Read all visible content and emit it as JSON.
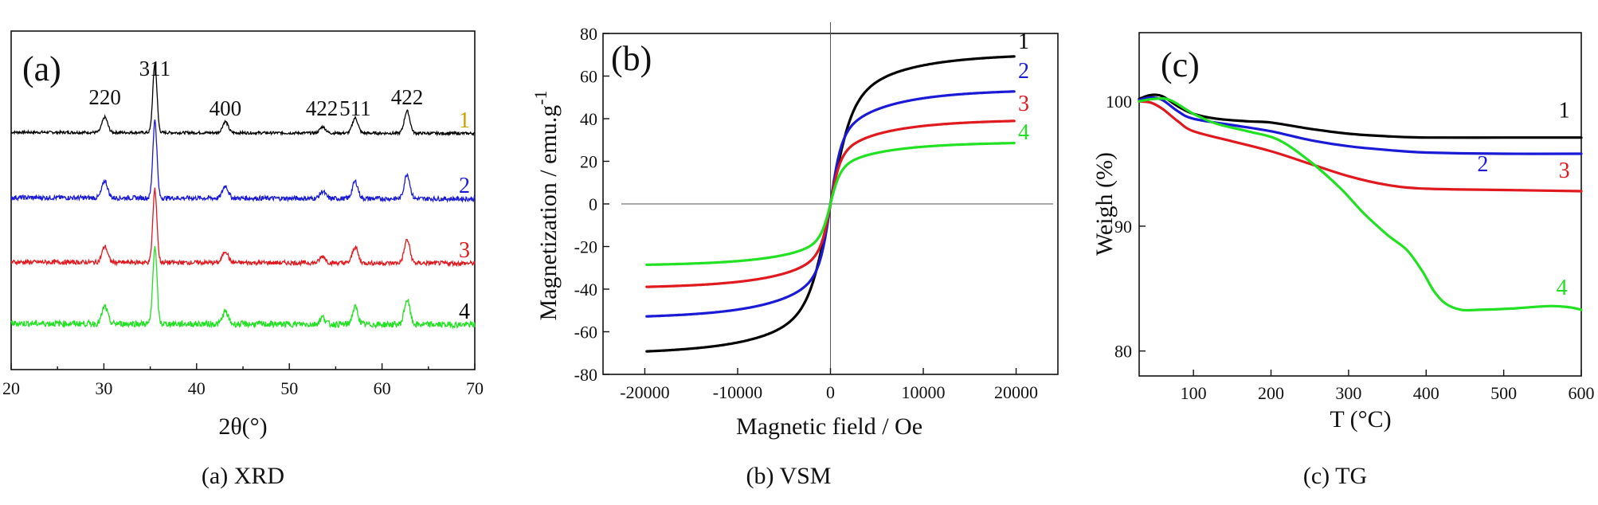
{
  "colors": {
    "black": "#000000",
    "blue": "#1a1ad6",
    "red": "#e0191f",
    "green": "#22e022",
    "gold": "#c8a000"
  },
  "chart_data": [
    {
      "id": "a",
      "type": "line",
      "panel_label": "(a)",
      "caption": "(a) XRD",
      "xlabel": "2θ(°)",
      "ylabel": "",
      "xlim": [
        20,
        70
      ],
      "xticks": [
        20,
        30,
        40,
        50,
        60,
        70
      ],
      "peak_labels": [
        {
          "text": "220",
          "x": 30.1
        },
        {
          "text": "311",
          "x": 35.5
        },
        {
          "text": "400",
          "x": 43.1
        },
        {
          "text": "422",
          "x": 53.5
        },
        {
          "text": "511",
          "x": 57.1
        },
        {
          "text": "422",
          "x": 62.7
        }
      ],
      "peaks": [
        {
          "pos": 30.1,
          "height": 0.22
        },
        {
          "pos": 35.5,
          "height": 1.0
        },
        {
          "pos": 43.1,
          "height": 0.16
        },
        {
          "pos": 53.6,
          "height": 0.09
        },
        {
          "pos": 57.1,
          "height": 0.22
        },
        {
          "pos": 62.7,
          "height": 0.32
        }
      ],
      "series": [
        {
          "name": "1",
          "label_color": "#c8a000",
          "color": "#000000",
          "noise": 0.04
        },
        {
          "name": "2",
          "label_color": "#1a1ad6",
          "color": "#1a1ad6",
          "noise": 0.06
        },
        {
          "name": "3",
          "label_color": "#e0191f",
          "color": "#e0191f",
          "noise": 0.06
        },
        {
          "name": "4",
          "label_color": "#000000",
          "color": "#22e022",
          "noise": 0.08
        }
      ]
    },
    {
      "id": "b",
      "type": "line",
      "panel_label": "(b)",
      "caption": "(b) VSM",
      "xlabel": "Magnetic field / Oe",
      "ylabel": "Magnetization / emu.g",
      "ylabel_sup": "-1",
      "xlim": [
        -24500,
        24500
      ],
      "ylim": [
        -80,
        80
      ],
      "xticks": [
        -20000,
        -10000,
        0,
        10000,
        20000
      ],
      "yticks": [
        -80,
        -60,
        -40,
        -20,
        0,
        20,
        40,
        60,
        80
      ],
      "series": [
        {
          "name": "1",
          "color": "#000000",
          "ms": 80,
          "k": 0.00055
        },
        {
          "name": "2",
          "color": "#1a1ad6",
          "ms": 61,
          "k": 0.0011
        },
        {
          "name": "3",
          "color": "#e0191f",
          "ms": 45,
          "k": 0.0012
        },
        {
          "name": "4",
          "color": "#22e022",
          "ms": 33,
          "k": 0.0012
        }
      ]
    },
    {
      "id": "c",
      "type": "line",
      "panel_label": "(c)",
      "caption": "(c) TG",
      "xlabel": "T (°C)",
      "ylabel": "Weigh (%)",
      "xlim": [
        30,
        600
      ],
      "ylim": [
        78,
        105.5
      ],
      "xticks": [
        100,
        200,
        300,
        400,
        500,
        600
      ],
      "yticks": [
        80,
        90,
        100
      ],
      "series": [
        {
          "name": "1",
          "color": "#000000",
          "points": [
            [
              30,
              100.2
            ],
            [
              45,
              100.5
            ],
            [
              60,
              100.4
            ],
            [
              80,
              99.6
            ],
            [
              100,
              99.0
            ],
            [
              130,
              98.6
            ],
            [
              170,
              98.4
            ],
            [
              200,
              98.3
            ],
            [
              250,
              97.8
            ],
            [
              300,
              97.4
            ],
            [
              350,
              97.2
            ],
            [
              400,
              97.1
            ],
            [
              500,
              97.1
            ],
            [
              600,
              97.1
            ]
          ]
        },
        {
          "name": "2",
          "color": "#1a1ad6",
          "points": [
            [
              30,
              100.1
            ],
            [
              45,
              100.3
            ],
            [
              60,
              100.1
            ],
            [
              80,
              99.2
            ],
            [
              100,
              98.6
            ],
            [
              150,
              98.1
            ],
            [
              200,
              97.6
            ],
            [
              250,
              96.9
            ],
            [
              300,
              96.4
            ],
            [
              350,
              96.1
            ],
            [
              400,
              95.9
            ],
            [
              500,
              95.8
            ],
            [
              600,
              95.8
            ]
          ]
        },
        {
          "name": "3",
          "color": "#e0191f",
          "points": [
            [
              30,
              100.0
            ],
            [
              45,
              99.9
            ],
            [
              60,
              99.4
            ],
            [
              80,
              98.4
            ],
            [
              100,
              97.6
            ],
            [
              150,
              96.8
            ],
            [
              200,
              96.0
            ],
            [
              250,
              95.0
            ],
            [
              300,
              94.0
            ],
            [
              350,
              93.3
            ],
            [
              400,
              93.0
            ],
            [
              500,
              92.9
            ],
            [
              600,
              92.8
            ]
          ]
        },
        {
          "name": "4",
          "color": "#22e022",
          "points": [
            [
              30,
              100.0
            ],
            [
              50,
              100.2
            ],
            [
              70,
              100.1
            ],
            [
              100,
              99.0
            ],
            [
              130,
              98.2
            ],
            [
              170,
              97.6
            ],
            [
              210,
              96.9
            ],
            [
              250,
              95.2
            ],
            [
              290,
              93.0
            ],
            [
              320,
              91.0
            ],
            [
              350,
              89.3
            ],
            [
              375,
              88.1
            ],
            [
              395,
              86.4
            ],
            [
              410,
              84.8
            ],
            [
              425,
              83.8
            ],
            [
              445,
              83.3
            ],
            [
              470,
              83.3
            ],
            [
              510,
              83.4
            ],
            [
              560,
              83.6
            ],
            [
              585,
              83.5
            ],
            [
              600,
              83.3
            ]
          ]
        }
      ],
      "series_labels": [
        {
          "name": "1",
          "color": "#000000",
          "x": 578,
          "y": 98.7
        },
        {
          "name": "2",
          "color": "#1a1ad6",
          "x": 473,
          "y": 94.4
        },
        {
          "name": "3",
          "color": "#e0191f",
          "x": 578,
          "y": 93.9
        },
        {
          "name": "4",
          "color": "#22e022",
          "x": 575,
          "y": 84.5
        }
      ]
    }
  ]
}
